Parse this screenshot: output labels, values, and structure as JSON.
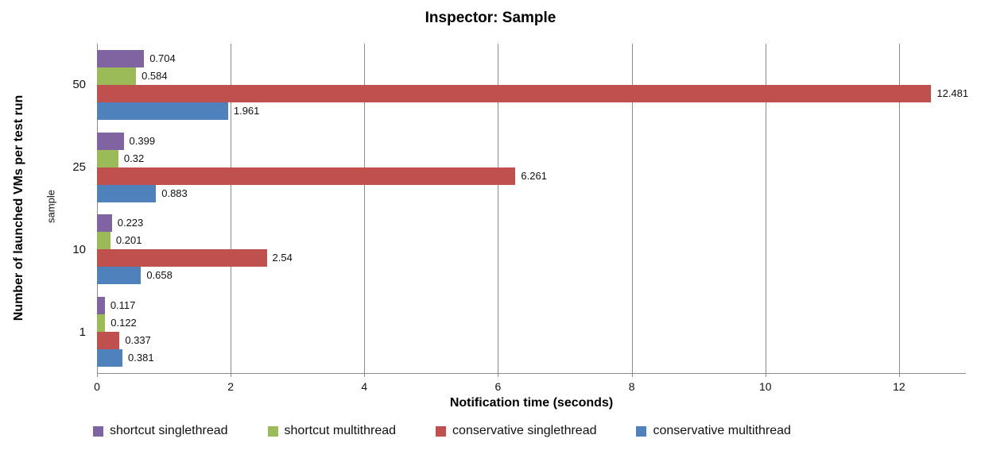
{
  "chart_data": {
    "type": "bar",
    "orientation": "horizontal",
    "title": "Inspector: Sample",
    "xlabel": "Notification time (seconds)",
    "ylabel": "Number of launched VMs per test run",
    "ylabel_inner": "sample",
    "categories": [
      "50",
      "25",
      "10",
      "1"
    ],
    "series": [
      {
        "name": "shortcut singlethread",
        "color": "#8064A2",
        "values": [
          0.704,
          0.399,
          0.223,
          0.117
        ],
        "labels": [
          "0.704",
          "0.399",
          "0.223",
          "0.117"
        ]
      },
      {
        "name": "shortcut multithread",
        "color": "#9BBB59",
        "values": [
          0.584,
          0.32,
          0.201,
          0.122
        ],
        "labels": [
          "0.584",
          "0.32",
          "0.201",
          "0.122"
        ]
      },
      {
        "name": "conservative singlethread",
        "color": "#C0504D",
        "values": [
          12.481,
          6.261,
          2.54,
          0.337
        ],
        "labels": [
          "12.481",
          "6.261",
          "2.54",
          "0.337"
        ]
      },
      {
        "name": "conservative multithread",
        "color": "#4F81BD",
        "values": [
          1.961,
          0.883,
          0.658,
          0.381
        ],
        "labels": [
          "1.961",
          "0.883",
          "0.658",
          "0.381"
        ]
      }
    ],
    "x_ticks": [
      0,
      2,
      4,
      6,
      8,
      10,
      12
    ],
    "xlim": [
      0,
      13
    ],
    "grid": true,
    "legend_position": "bottom",
    "colors": {
      "gridline": "#8C8C8C",
      "axis_line": "#8C8C8C",
      "text": "#111111",
      "background": "#FFFFFF"
    }
  }
}
